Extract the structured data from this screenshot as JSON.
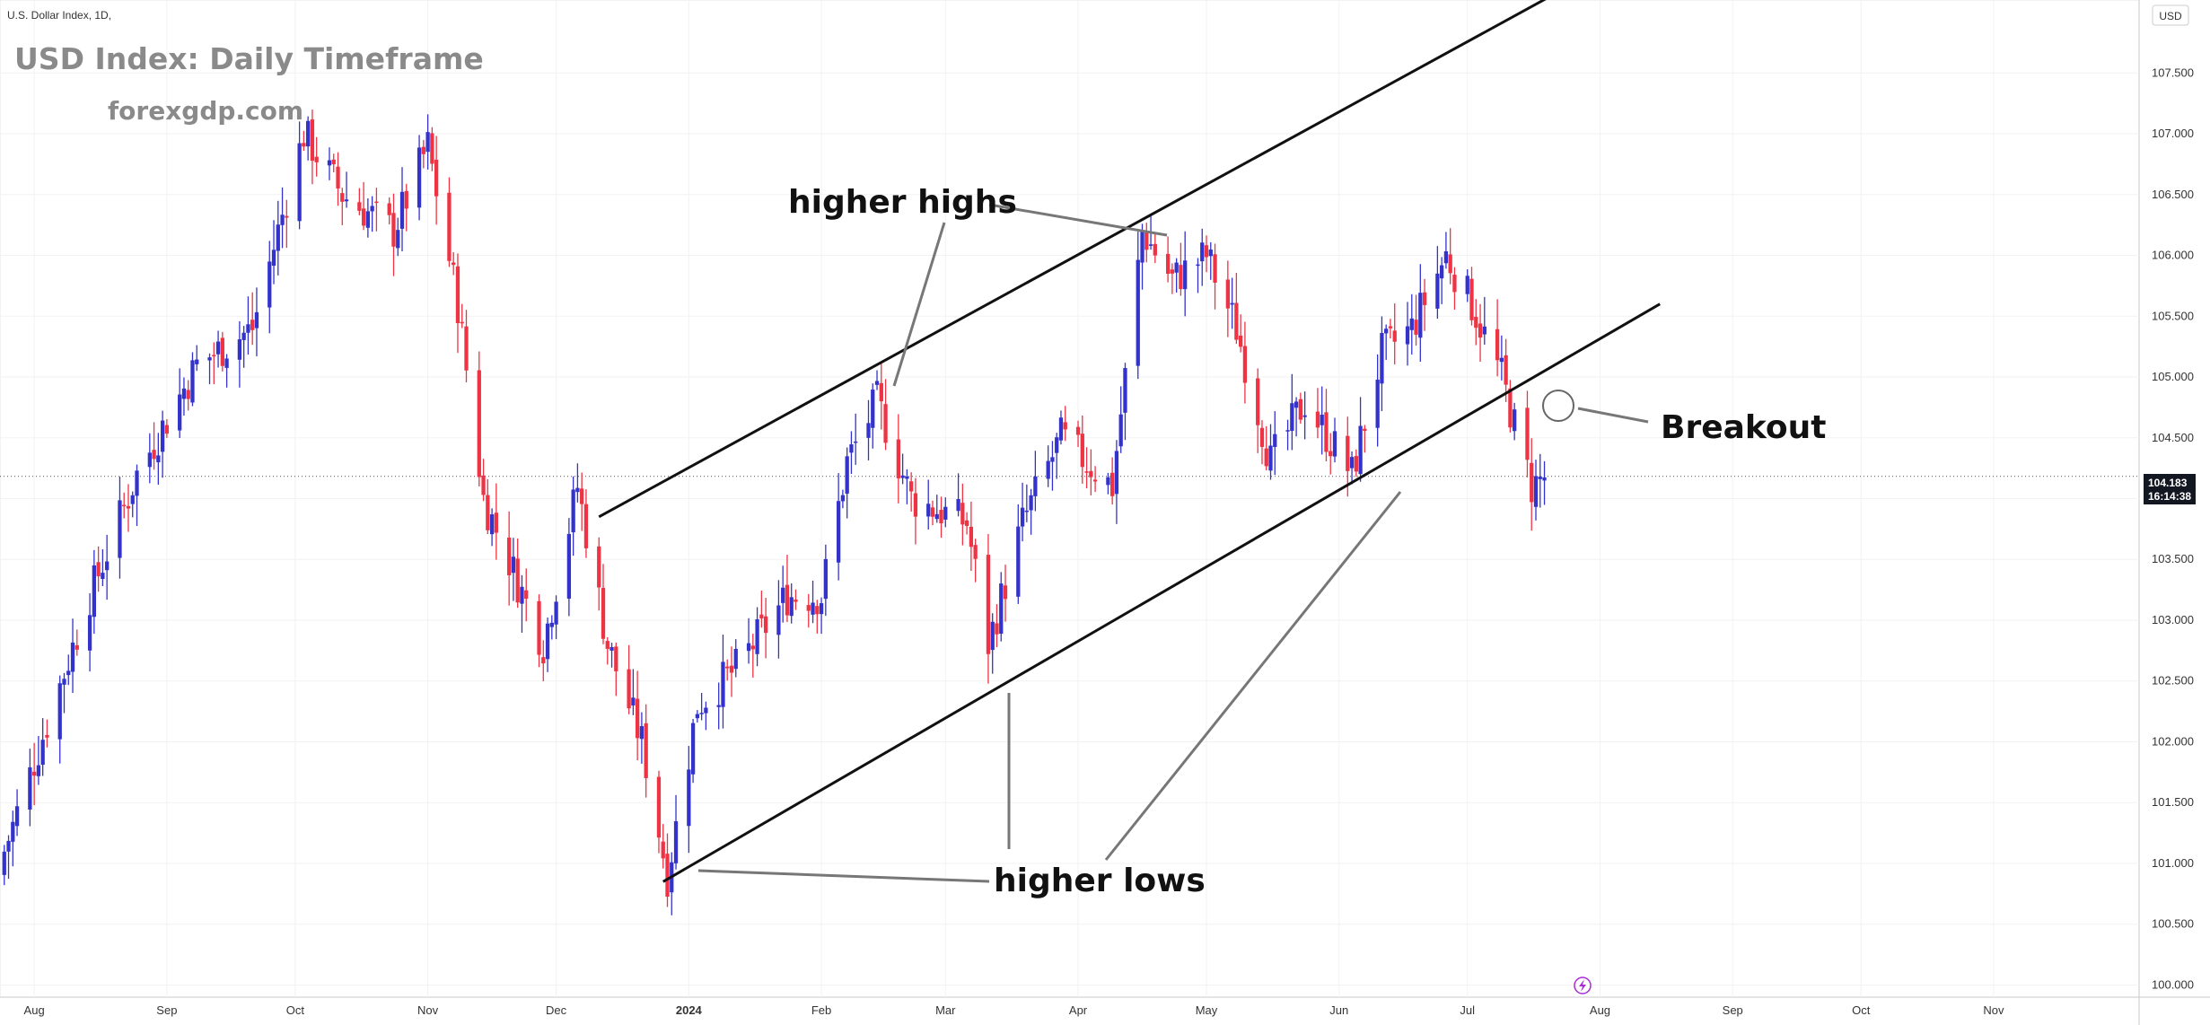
{
  "header": {
    "symbol": "U.S. Dollar Index, 1D,",
    "currency": "USD"
  },
  "overlay": {
    "title": "USD Index: Daily Timeframe",
    "subtitle": "forexgdp.com"
  },
  "annotations": {
    "higher_highs": "higher highs",
    "higher_lows": "higher lows",
    "breakout": "Breakout"
  },
  "last_price": {
    "price": "104.183",
    "countdown": "16:14:38"
  },
  "chart_data": {
    "type": "candlestick",
    "title": "",
    "xlabel": "",
    "ylabel": "",
    "ylim": [
      99.9,
      108.1
    ],
    "y_ticks": [
      "100.000",
      "100.500",
      "101.000",
      "101.500",
      "102.000",
      "102.500",
      "103.000",
      "103.500",
      "104.000",
      "104.500",
      "105.000",
      "105.500",
      "106.000",
      "106.500",
      "107.000",
      "107.500"
    ],
    "x_ticks": [
      {
        "label": "Aug",
        "date": "2023-08-01"
      },
      {
        "label": "Sep",
        "date": "2023-09-01"
      },
      {
        "label": "Oct",
        "date": "2023-10-01"
      },
      {
        "label": "Nov",
        "date": "2023-11-01"
      },
      {
        "label": "Dec",
        "date": "2023-12-01"
      },
      {
        "label": "2024",
        "date": "2024-01-01"
      },
      {
        "label": "Feb",
        "date": "2024-02-01"
      },
      {
        "label": "Mar",
        "date": "2024-03-01"
      },
      {
        "label": "Apr",
        "date": "2024-04-01"
      },
      {
        "label": "May",
        "date": "2024-05-01"
      },
      {
        "label": "Jun",
        "date": "2024-06-01"
      },
      {
        "label": "Jul",
        "date": "2024-07-01"
      },
      {
        "label": "Aug",
        "date": "2024-08-01"
      },
      {
        "label": "Sep",
        "date": "2024-09-01"
      },
      {
        "label": "Oct",
        "date": "2024-10-01"
      },
      {
        "label": "Nov",
        "date": "2024-11-01"
      }
    ],
    "x_range": [
      "2023-07-24",
      "2024-12-05"
    ],
    "price_line": 104.183,
    "colors": {
      "up": "#3333cc",
      "down": "#ee3344",
      "trendline": "#111111",
      "annotation_line": "#777777"
    },
    "key_points": [
      {
        "date": "2023-07-25",
        "close": 101.1
      },
      {
        "date": "2023-08-14",
        "close": 103.2
      },
      {
        "date": "2023-08-25",
        "close": 104.2
      },
      {
        "date": "2023-09-08",
        "close": 105.1
      },
      {
        "date": "2023-09-21",
        "close": 105.4
      },
      {
        "date": "2023-10-03",
        "close": 107.0
      },
      {
        "date": "2023-10-12",
        "close": 106.5
      },
      {
        "date": "2023-10-24",
        "close": 106.2
      },
      {
        "date": "2023-11-01",
        "close": 106.9
      },
      {
        "date": "2023-11-08",
        "close": 105.6
      },
      {
        "date": "2023-11-14",
        "close": 104.0
      },
      {
        "date": "2023-11-28",
        "close": 102.8
      },
      {
        "date": "2023-12-06",
        "close": 104.1
      },
      {
        "date": "2023-12-13",
        "close": 102.8
      },
      {
        "date": "2023-12-21",
        "close": 102.0
      },
      {
        "date": "2023-12-27",
        "close": 100.9
      },
      {
        "date": "2024-01-03",
        "close": 102.3
      },
      {
        "date": "2024-01-12",
        "close": 102.6
      },
      {
        "date": "2024-01-24",
        "close": 103.2
      },
      {
        "date": "2024-02-01",
        "close": 103.2
      },
      {
        "date": "2024-02-07",
        "close": 104.3
      },
      {
        "date": "2024-02-14",
        "close": 104.8
      },
      {
        "date": "2024-02-22",
        "close": 104.0
      },
      {
        "date": "2024-03-06",
        "close": 103.8
      },
      {
        "date": "2024-03-11",
        "close": 102.8
      },
      {
        "date": "2024-03-19",
        "close": 103.8
      },
      {
        "date": "2024-03-28",
        "close": 104.5
      },
      {
        "date": "2024-04-09",
        "close": 104.1
      },
      {
        "date": "2024-04-16",
        "close": 106.2
      },
      {
        "date": "2024-04-23",
        "close": 105.8
      },
      {
        "date": "2024-05-01",
        "close": 106.0
      },
      {
        "date": "2024-05-08",
        "close": 105.4
      },
      {
        "date": "2024-05-16",
        "close": 104.3
      },
      {
        "date": "2024-05-24",
        "close": 104.8
      },
      {
        "date": "2024-06-04",
        "close": 104.2
      },
      {
        "date": "2024-06-11",
        "close": 105.2
      },
      {
        "date": "2024-06-18",
        "close": 105.4
      },
      {
        "date": "2024-06-26",
        "close": 106.0
      },
      {
        "date": "2024-07-02",
        "close": 105.6
      },
      {
        "date": "2024-07-09",
        "close": 105.0
      },
      {
        "date": "2024-07-12",
        "close": 104.6
      },
      {
        "date": "2024-07-16",
        "close": 104.1
      },
      {
        "date": "2024-07-19",
        "close": 104.18
      }
    ],
    "trendlines": [
      {
        "name": "upper channel",
        "from": {
          "date": "2023-12-11",
          "price": 103.85
        },
        "to": {
          "date": "2024-07-24",
          "price": 108.2
        }
      },
      {
        "name": "lower channel",
        "from": {
          "date": "2023-12-26",
          "price": 100.85
        },
        "to": {
          "date": "2024-08-15",
          "price": 105.6
        }
      }
    ]
  }
}
